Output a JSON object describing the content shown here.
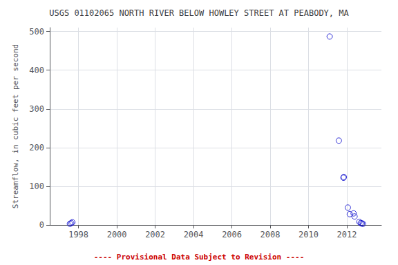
{
  "chart_data": {
    "type": "scatter",
    "title": "USGS 01102065 NORTH RIVER BELOW HOWLEY STREET AT PEABODY, MA",
    "ylabel": "Streamflow, in cubic feet per second",
    "x": [
      1997.55,
      1997.62,
      1997.68,
      2011.1,
      2011.58,
      2011.82,
      2011.84,
      2012.05,
      2012.15,
      2012.35,
      2012.4,
      2012.65,
      2012.72,
      2012.78,
      2012.84
    ],
    "values": [
      3,
      5,
      7,
      487,
      218,
      122,
      124,
      45,
      28,
      30,
      22,
      8,
      5,
      4,
      3
    ],
    "color": "#0000cc",
    "marker": "open-circle",
    "xlim": [
      1996.5,
      2013.8
    ],
    "ylim": [
      0,
      510
    ],
    "xticks": [
      1998,
      2000,
      2002,
      2004,
      2006,
      2008,
      2010,
      2012
    ],
    "yticks": [
      0,
      100,
      200,
      300,
      400,
      500
    ],
    "grid": true,
    "annotations": [
      {
        "text": "---- Provisional Data Subject to Revision ----",
        "color": "#cc0000"
      }
    ]
  }
}
